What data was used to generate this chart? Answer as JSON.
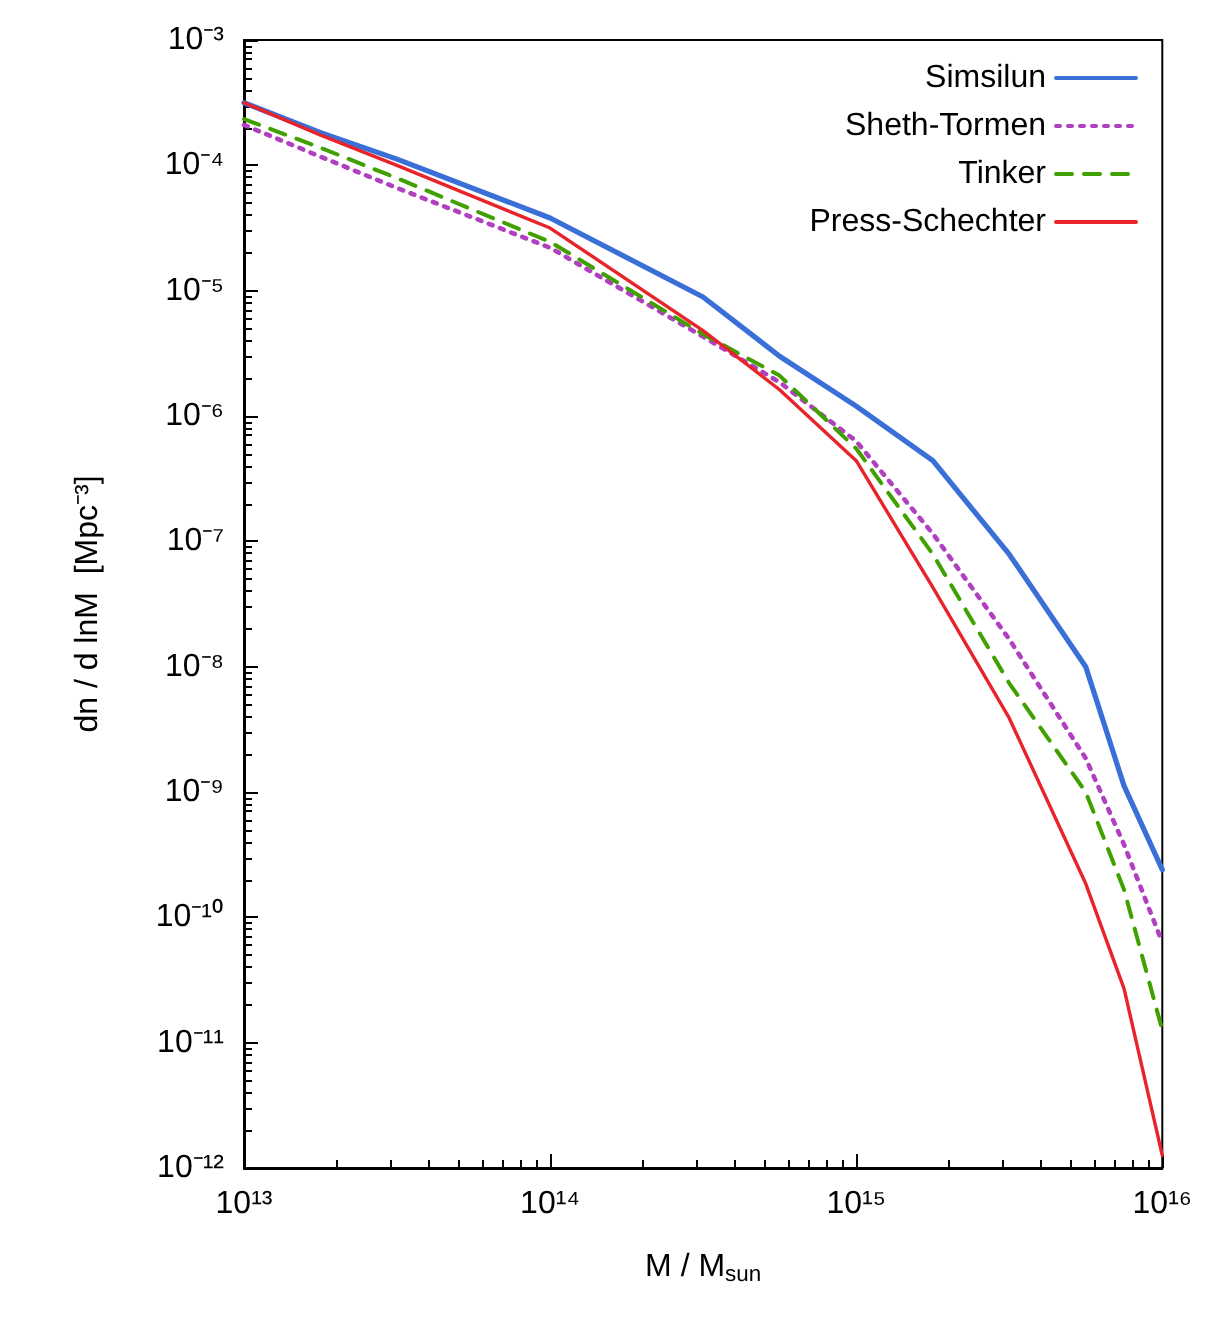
{
  "chart_data": {
    "type": "line",
    "xlabel": "M / M$_{sun}$",
    "ylabel": "dn / d lnM  [Mpc⁻³]",
    "log": "xy",
    "grid": false,
    "legend": "top right",
    "marker": "none",
    "x": [
      10000000000000.0,
      17800000000000.0,
      31600000000000.0,
      100000000000000.0,
      316000000000000.0,
      562000000000000.0,
      1000000000000000.0,
      1780000000000000.0,
      3160000000000000.0,
      5620000000000000.0,
      7500000000000000.0,
      1e+16
    ],
    "xlim": [
      10000000000000.0,
      1e+16
    ],
    "xticks": [
      {
        "value": 10000000000000.0,
        "label": "10¹³"
      },
      {
        "value": 100000000000000.0,
        "label": "10¹⁴"
      },
      {
        "value": 1000000000000000.0,
        "label": "10¹⁵"
      },
      {
        "value": 1e+16,
        "label": "10¹⁶"
      }
    ],
    "ylim": [
      1e-12,
      0.001
    ],
    "yticks": [
      {
        "value": 1e-12,
        "label": "10⁻¹²"
      },
      {
        "value": 1e-11,
        "label": "10⁻¹¹"
      },
      {
        "value": 1e-10,
        "label": "10⁻¹⁰"
      },
      {
        "value": 1e-09,
        "label": "10⁻⁹"
      },
      {
        "value": 1e-08,
        "label": "10⁻⁸"
      },
      {
        "value": 1e-07,
        "label": "10⁻⁷"
      },
      {
        "value": 1e-06,
        "label": "10⁻⁶"
      },
      {
        "value": 1e-05,
        "label": "10⁻⁵"
      },
      {
        "value": 0.0001,
        "label": "10⁻⁴"
      },
      {
        "value": 0.001,
        "label": "10⁻³"
      }
    ],
    "series": [
      {
        "name": "Simsilun",
        "color": "#3a6fd8",
        "line_style": "solid",
        "values": [
          0.000316,
          0.000182,
          0.000112,
          3.8e-05,
          8.9e-06,
          3e-06,
          1.2e-06,
          4.4e-07,
          7.9e-08,
          1e-08,
          1.12e-09,
          2.4e-10
        ]
      },
      {
        "name": "Sheth-Tormen",
        "color": "#b040c0",
        "line_style": "dotted",
        "values": [
          0.00021,
          0.000117,
          6.6e-05,
          2.2e-05,
          4.3e-06,
          1.86e-06,
          6.3e-07,
          1.15e-07,
          1.66e-08,
          1.86e-09,
          3.8e-10,
          6.3e-11
        ]
      },
      {
        "name": "Tinker",
        "color": "#40a000",
        "line_style": "dashed",
        "values": [
          0.000234,
          0.000138,
          7.9e-05,
          2.45e-05,
          4.5e-06,
          2.1e-06,
          5.5e-07,
          7.9e-08,
          7.4e-09,
          1e-09,
          1.66e-10,
          1.26e-11
        ]
      },
      {
        "name": "Press-Schechter",
        "color": "#e8232a",
        "line_style": "solid",
        "values": [
          0.000316,
          0.000174,
          0.0001,
          3.16e-05,
          4.8e-06,
          1.62e-06,
          4.4e-07,
          4.3e-08,
          3.9e-09,
          1.86e-10,
          2.7e-11,
          1.26e-12
        ]
      }
    ]
  }
}
